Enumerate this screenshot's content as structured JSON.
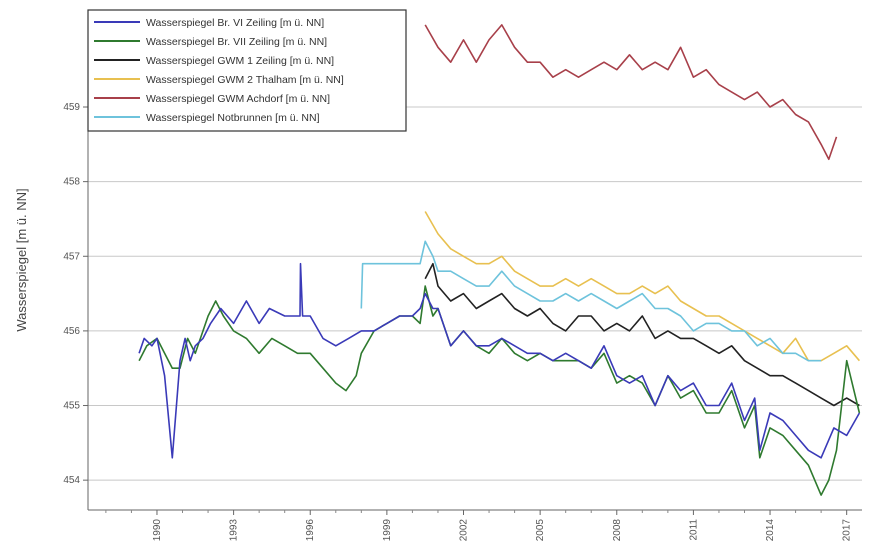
{
  "chart_data": {
    "type": "line",
    "title": "",
    "xlabel": "",
    "ylabel": "Wasserspiegel [m ü. NN]",
    "x_ticks": [
      "1990",
      "1993",
      "1996",
      "1999",
      "2002",
      "2005",
      "2008",
      "2011",
      "2014",
      "2017"
    ],
    "y_ticks": [
      "454",
      "455",
      "456",
      "457",
      "458",
      "459"
    ],
    "xlim": [
      1987.3,
      2017.6
    ],
    "ylim": [
      453.6,
      460.3
    ],
    "y_gridlines": [
      454,
      455,
      456,
      457,
      458,
      459
    ],
    "grid": "horizontal",
    "legend_position": "top-left",
    "series": [
      {
        "name": "Wasserspiegel  Br. VI Zeiling [m ü. NN]",
        "color": "#3a3ab8",
        "x": [
          1989.3,
          1989.5,
          1989.8,
          1990.0,
          1990.3,
          1990.6,
          1990.9,
          1991.1,
          1991.3,
          1991.5,
          1991.8,
          1992.1,
          1992.5,
          1993.0,
          1993.5,
          1994.0,
          1994.4,
          1995.0,
          1995.6,
          1995.62,
          1995.7,
          1996.0,
          1996.5,
          1997.0,
          1997.5,
          1998.0,
          1998.5,
          1999.0,
          1999.5,
          2000.0,
          2000.3,
          2000.5,
          2000.8,
          2001.0,
          2001.5,
          2002.0,
          2002.5,
          2003.0,
          2003.5,
          2004.0,
          2004.5,
          2005.0,
          2005.5,
          2006.0,
          2006.5,
          2007.0,
          2007.5,
          2008.0,
          2008.5,
          2009.0,
          2009.5,
          2010.0,
          2010.5,
          2011.0,
          2011.5,
          2012.0,
          2012.5,
          2013.0,
          2013.4,
          2013.6,
          2014.0,
          2014.5,
          2015.0,
          2015.5,
          2016.0,
          2016.5,
          2017.0,
          2017.5
        ],
        "y": [
          455.7,
          455.9,
          455.8,
          455.9,
          455.4,
          454.3,
          455.6,
          455.9,
          455.6,
          455.8,
          455.9,
          456.1,
          456.3,
          456.1,
          456.4,
          456.1,
          456.3,
          456.2,
          456.2,
          456.9,
          456.2,
          456.2,
          455.9,
          455.8,
          455.9,
          456.0,
          456.0,
          456.1,
          456.2,
          456.2,
          456.3,
          456.5,
          456.3,
          456.3,
          455.8,
          456.0,
          455.8,
          455.8,
          455.9,
          455.8,
          455.7,
          455.7,
          455.6,
          455.7,
          455.6,
          455.5,
          455.8,
          455.4,
          455.3,
          455.4,
          455.0,
          455.4,
          455.2,
          455.3,
          455.0,
          455.0,
          455.3,
          454.8,
          455.1,
          454.4,
          454.9,
          454.8,
          454.6,
          454.4,
          454.3,
          454.7,
          454.6,
          454.9
        ]
      },
      {
        "name": "Wasserspiegel  Br. VII Zeiling [m ü. NN]",
        "color": "#2f7a2f",
        "x": [
          1989.3,
          1989.6,
          1990.0,
          1990.3,
          1990.6,
          1990.9,
          1991.2,
          1991.5,
          1991.8,
          1992.0,
          1992.3,
          1992.6,
          1993.0,
          1993.5,
          1994.0,
          1994.5,
          1995.0,
          1995.5,
          1996.0,
          1996.5,
          1997.0,
          1997.4,
          1997.8,
          1998.0,
          1998.5,
          1999.0,
          1999.5,
          2000.0,
          2000.3,
          2000.5,
          2000.8,
          2001.0,
          2001.5,
          2002.0,
          2002.5,
          2003.0,
          2003.5,
          2004.0,
          2004.5,
          2005.0,
          2005.5,
          2006.0,
          2006.5,
          2007.0,
          2007.5,
          2008.0,
          2008.5,
          2009.0,
          2009.5,
          2010.0,
          2010.5,
          2011.0,
          2011.5,
          2012.0,
          2012.5,
          2013.0,
          2013.4,
          2013.6,
          2014.0,
          2014.5,
          2015.0,
          2015.5,
          2016.0,
          2016.3,
          2016.6,
          2017.0,
          2017.5
        ],
        "y": [
          455.6,
          455.8,
          455.9,
          455.7,
          455.5,
          455.5,
          455.9,
          455.7,
          456.0,
          456.2,
          456.4,
          456.2,
          456.0,
          455.9,
          455.7,
          455.9,
          455.8,
          455.7,
          455.7,
          455.5,
          455.3,
          455.2,
          455.4,
          455.7,
          456.0,
          456.1,
          456.2,
          456.2,
          456.1,
          456.6,
          456.2,
          456.3,
          455.8,
          456.0,
          455.8,
          455.7,
          455.9,
          455.7,
          455.6,
          455.7,
          455.6,
          455.6,
          455.6,
          455.5,
          455.7,
          455.3,
          455.4,
          455.3,
          455.0,
          455.4,
          455.1,
          455.2,
          454.9,
          454.9,
          455.2,
          454.7,
          455.0,
          454.3,
          454.7,
          454.6,
          454.4,
          454.2,
          453.8,
          454.0,
          454.4,
          455.6,
          454.9
        ]
      },
      {
        "name": "Wasserspiegel  GWM 1 Zeiling [m ü. NN]",
        "color": "#222222",
        "x": [
          2000.5,
          2000.8,
          2001.0,
          2001.5,
          2002.0,
          2002.5,
          2003.0,
          2003.5,
          2004.0,
          2004.5,
          2005.0,
          2005.5,
          2006.0,
          2006.5,
          2007.0,
          2007.5,
          2008.0,
          2008.5,
          2009.0,
          2009.5,
          2010.0,
          2010.5,
          2011.0,
          2011.5,
          2012.0,
          2012.5,
          2013.0,
          2013.5,
          2014.0,
          2014.5,
          2015.0,
          2015.5,
          2016.0,
          2016.5,
          2017.0,
          2017.5
        ],
        "y": [
          456.7,
          456.9,
          456.6,
          456.4,
          456.5,
          456.3,
          456.4,
          456.5,
          456.3,
          456.2,
          456.3,
          456.1,
          456.0,
          456.2,
          456.2,
          456.0,
          456.1,
          456.0,
          456.2,
          455.9,
          456.0,
          455.9,
          455.9,
          455.8,
          455.7,
          455.8,
          455.6,
          455.5,
          455.4,
          455.4,
          455.3,
          455.2,
          455.1,
          455.0,
          455.1,
          455.0
        ]
      },
      {
        "name": "Wasserspiegel  GWM 2 Thalham [m ü. NN]",
        "color": "#e8c050",
        "x": [
          2000.5,
          2001.0,
          2001.5,
          2002.0,
          2002.5,
          2003.0,
          2003.5,
          2004.0,
          2004.5,
          2005.0,
          2005.5,
          2006.0,
          2006.5,
          2007.0,
          2007.5,
          2008.0,
          2008.5,
          2009.0,
          2009.5,
          2010.0,
          2010.5,
          2011.0,
          2011.5,
          2012.0,
          2012.5,
          2013.0,
          2013.5,
          2014.0,
          2014.5,
          2015.0,
          2015.5,
          2016.0,
          2016.5,
          2017.0,
          2017.5
        ],
        "y": [
          457.6,
          457.3,
          457.1,
          457.0,
          456.9,
          456.9,
          457.0,
          456.8,
          456.7,
          456.6,
          456.6,
          456.7,
          456.6,
          456.7,
          456.6,
          456.5,
          456.5,
          456.6,
          456.5,
          456.6,
          456.4,
          456.3,
          456.2,
          456.2,
          456.1,
          456.0,
          455.9,
          455.8,
          455.7,
          455.9,
          455.6,
          455.6,
          455.7,
          455.8,
          455.6
        ]
      },
      {
        "name": "Wasserspiegel  GWM Achdorf [m ü. NN]",
        "color": "#a8404a",
        "x": [
          2000.5,
          2001.0,
          2001.5,
          2002.0,
          2002.5,
          2003.0,
          2003.5,
          2004.0,
          2004.5,
          2005.0,
          2005.5,
          2006.0,
          2006.5,
          2007.0,
          2007.5,
          2008.0,
          2008.5,
          2009.0,
          2009.5,
          2010.0,
          2010.5,
          2011.0,
          2011.5,
          2012.0,
          2012.5,
          2013.0,
          2013.5,
          2014.0,
          2014.5,
          2015.0,
          2015.5,
          2016.0,
          2016.3,
          2016.6
        ],
        "y": [
          460.1,
          459.8,
          459.6,
          459.9,
          459.6,
          459.9,
          460.1,
          459.8,
          459.6,
          459.6,
          459.4,
          459.5,
          459.4,
          459.5,
          459.6,
          459.5,
          459.7,
          459.5,
          459.6,
          459.5,
          459.8,
          459.4,
          459.5,
          459.3,
          459.2,
          459.1,
          459.2,
          459.0,
          459.1,
          458.9,
          458.8,
          458.5,
          458.3,
          458.6
        ]
      },
      {
        "name": "Wasserspiegel  Notbrunnen [m ü. NN]",
        "color": "#6ec3dc",
        "x": [
          1998.0,
          1998.05,
          1998.5,
          1999.0,
          1999.5,
          2000.0,
          2000.3,
          2000.5,
          2000.8,
          2001.0,
          2001.5,
          2002.0,
          2002.5,
          2003.0,
          2003.5,
          2004.0,
          2004.5,
          2005.0,
          2005.5,
          2006.0,
          2006.5,
          2007.0,
          2007.5,
          2008.0,
          2008.5,
          2009.0,
          2009.5,
          2010.0,
          2010.5,
          2011.0,
          2011.5,
          2012.0,
          2012.5,
          2013.0,
          2013.5,
          2014.0,
          2014.5,
          2015.0,
          2015.5,
          2016.0
        ],
        "y": [
          456.3,
          456.9,
          456.9,
          456.9,
          456.9,
          456.9,
          456.9,
          457.2,
          457.0,
          456.8,
          456.8,
          456.7,
          456.6,
          456.6,
          456.8,
          456.6,
          456.5,
          456.4,
          456.4,
          456.5,
          456.4,
          456.5,
          456.4,
          456.3,
          456.4,
          456.5,
          456.3,
          456.3,
          456.2,
          456.0,
          456.1,
          456.1,
          456.0,
          456.0,
          455.8,
          455.9,
          455.7,
          455.7,
          455.6,
          455.6
        ]
      }
    ]
  }
}
